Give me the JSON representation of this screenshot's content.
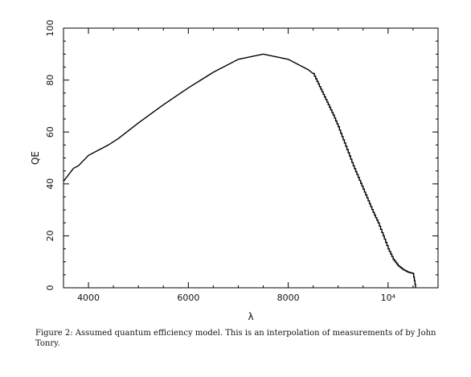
{
  "chart_data": {
    "type": "line",
    "title": "",
    "xlabel": "λ",
    "ylabel": "QE",
    "xlim": [
      3500,
      11000
    ],
    "ylim": [
      0,
      100
    ],
    "grid": false,
    "x_ticks": [
      {
        "value": 4000,
        "label": "4000"
      },
      {
        "value": 6000,
        "label": "6000"
      },
      {
        "value": 8000,
        "label": "8000"
      },
      {
        "value": 10000,
        "label": "10⁴"
      }
    ],
    "y_ticks": [
      {
        "value": 0,
        "label": "0"
      },
      {
        "value": 20,
        "label": "20"
      },
      {
        "value": 40,
        "label": "40"
      },
      {
        "value": 60,
        "label": "60"
      },
      {
        "value": 80,
        "label": "80"
      },
      {
        "value": 100,
        "label": "100"
      }
    ],
    "series": [
      {
        "color": "#000000",
        "x": [
          3500,
          3600,
          3700,
          3800,
          3900,
          4000,
          4200,
          4400,
          4600,
          4800,
          5000,
          5500,
          6000,
          6500,
          7000,
          7500,
          8000,
          8200,
          8400,
          8500,
          8600,
          8700,
          8800,
          8900,
          9000,
          9100,
          9200,
          9300,
          9400,
          9500,
          9600,
          9700,
          9800,
          9900,
          10000,
          10100,
          10200,
          10300,
          10400,
          10500,
          10550
        ],
        "y": [
          41,
          43.5,
          46,
          47,
          49,
          51,
          53,
          55,
          57.5,
          60.5,
          63.5,
          70.5,
          77,
          83,
          88,
          90,
          88,
          86,
          84,
          82.5,
          78.5,
          74.5,
          70.5,
          66.5,
          62,
          57,
          52,
          47,
          42.5,
          38,
          33.5,
          29,
          25,
          20,
          15,
          11,
          8.5,
          7,
          6,
          5.5,
          0
        ]
      }
    ]
  },
  "caption": {
    "line1": "Figure 2: Assumed quantum efficiency model. This is an interpolation of measurements of by John",
    "line2": "Tonry."
  }
}
